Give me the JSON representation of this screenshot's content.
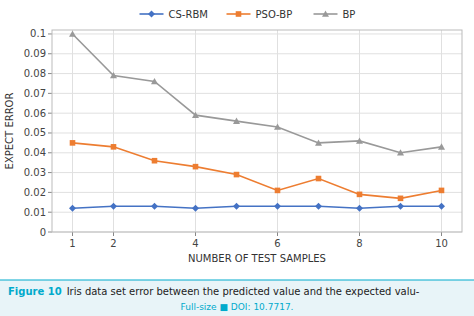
{
  "chart_data": {
    "type": "line",
    "x_label": "NUMBER OF TEST SAMPLES",
    "y_label": "EXPECT ERROR",
    "x": [
      1,
      2,
      3,
      4,
      5,
      6,
      7,
      8,
      9,
      10
    ],
    "series": [
      {
        "name": "CS-RBM",
        "color": "#4472c4",
        "marker": "diamond",
        "values": [
          0.012,
          0.013,
          0.013,
          0.012,
          0.013,
          0.013,
          0.013,
          0.012,
          0.013,
          0.013
        ]
      },
      {
        "name": "PSO-BP",
        "color": "#ed7d31",
        "marker": "square",
        "values": [
          0.045,
          0.043,
          0.036,
          0.033,
          0.029,
          0.021,
          0.027,
          0.019,
          0.017,
          0.021
        ]
      },
      {
        "name": "BP",
        "color": "#999999",
        "marker": "triangle",
        "values": [
          0.1,
          0.079,
          0.076,
          0.059,
          0.056,
          0.053,
          0.045,
          0.046,
          0.04,
          0.043
        ]
      }
    ],
    "xlim": [
      0.5,
      10.5
    ],
    "xticks": [
      1,
      2,
      4,
      6,
      8,
      10
    ],
    "ylim": [
      0,
      0.102
    ],
    "yticks": [
      0,
      0.01,
      0.02,
      0.03,
      0.04,
      0.05,
      0.06,
      0.07,
      0.08,
      0.09,
      0.1
    ],
    "grid": true,
    "legend": "top",
    "annotations": [
      "Figure 10",
      "Iris data set error between the predicted value and the expected valu-",
      "Full-size ■ DOI: 10.7717."
    ]
  }
}
